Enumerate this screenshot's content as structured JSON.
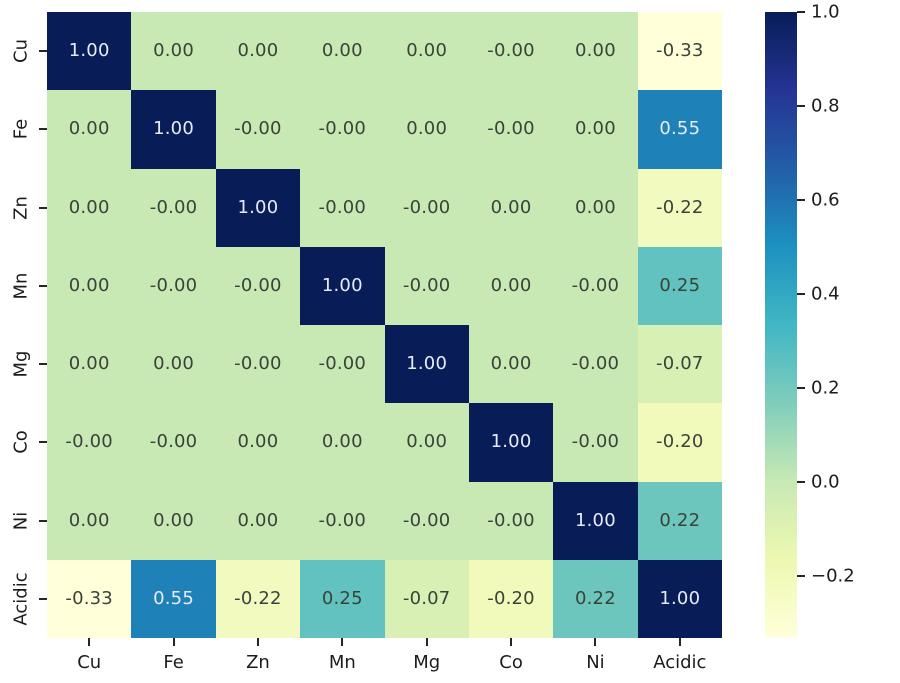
{
  "chart_data": {
    "type": "heatmap",
    "title": "",
    "xlabel": "",
    "ylabel": "",
    "categories": [
      "Cu",
      "Fe",
      "Zn",
      "Mn",
      "Mg",
      "Co",
      "Ni",
      "Acidic"
    ],
    "matrix": [
      [
        1.0,
        0.0,
        0.0,
        0.0,
        0.0,
        -0.0,
        0.0,
        -0.33
      ],
      [
        0.0,
        1.0,
        -0.0,
        -0.0,
        0.0,
        -0.0,
        0.0,
        0.55
      ],
      [
        0.0,
        -0.0,
        1.0,
        -0.0,
        -0.0,
        0.0,
        0.0,
        -0.22
      ],
      [
        0.0,
        -0.0,
        -0.0,
        1.0,
        -0.0,
        0.0,
        -0.0,
        0.25
      ],
      [
        0.0,
        0.0,
        -0.0,
        -0.0,
        1.0,
        0.0,
        -0.0,
        -0.07
      ],
      [
        -0.0,
        -0.0,
        0.0,
        0.0,
        0.0,
        1.0,
        -0.0,
        -0.2
      ],
      [
        0.0,
        0.0,
        0.0,
        -0.0,
        -0.0,
        -0.0,
        1.0,
        0.22
      ],
      [
        -0.33,
        0.55,
        -0.22,
        0.25,
        -0.07,
        -0.2,
        0.22,
        1.0
      ]
    ],
    "matrix_display": [
      [
        "1.00",
        "0.00",
        "0.00",
        "0.00",
        "0.00",
        "-0.00",
        "0.00",
        "-0.33"
      ],
      [
        "0.00",
        "1.00",
        "-0.00",
        "-0.00",
        "0.00",
        "-0.00",
        "0.00",
        "0.55"
      ],
      [
        "0.00",
        "-0.00",
        "1.00",
        "-0.00",
        "-0.00",
        "0.00",
        "0.00",
        "-0.22"
      ],
      [
        "0.00",
        "-0.00",
        "-0.00",
        "1.00",
        "-0.00",
        "0.00",
        "-0.00",
        "0.25"
      ],
      [
        "0.00",
        "0.00",
        "-0.00",
        "-0.00",
        "1.00",
        "0.00",
        "-0.00",
        "-0.07"
      ],
      [
        "-0.00",
        "-0.00",
        "0.00",
        "0.00",
        "0.00",
        "1.00",
        "-0.00",
        "-0.20"
      ],
      [
        "0.00",
        "0.00",
        "0.00",
        "-0.00",
        "-0.00",
        "-0.00",
        "1.00",
        "0.22"
      ],
      [
        "-0.33",
        "0.55",
        "-0.22",
        "0.25",
        "-0.07",
        "-0.20",
        "0.22",
        "1.00"
      ]
    ],
    "vmin": -0.33,
    "vmax": 1.0,
    "colormap": {
      "name": "YlGnBu",
      "stops": [
        "#ffffd9",
        "#edf8b1",
        "#c7e9b4",
        "#7fcdbb",
        "#41b6c4",
        "#1d91c0",
        "#225ea8",
        "#253494",
        "#081d58"
      ]
    },
    "colorbar": {
      "position": "right",
      "tick_labels": [
        "1.0",
        "0.8",
        "0.6",
        "0.4",
        "0.2",
        "0.0",
        "−0.2"
      ],
      "tick_values": [
        1.0,
        0.8,
        0.6,
        0.4,
        0.2,
        0.0,
        -0.2
      ]
    },
    "grid": false,
    "legend": "none",
    "colors": {
      "background": "#ffffff",
      "annotation_dark_text": "#3a433a",
      "annotation_light_text": "#e6ebf5",
      "axis_text": "#1c1c1c",
      "tick_mark": "#262626"
    }
  }
}
